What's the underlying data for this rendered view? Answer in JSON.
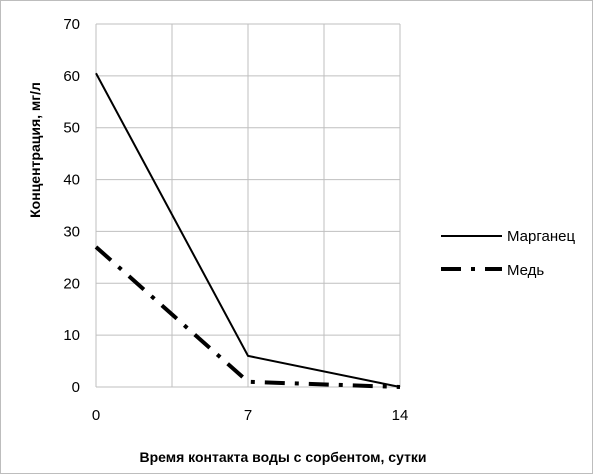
{
  "chart_data": {
    "type": "line",
    "x": [
      0,
      7,
      14
    ],
    "xlim": [
      0,
      14
    ],
    "ylim": [
      0,
      70
    ],
    "x_ticks": [
      "0",
      "7",
      "14"
    ],
    "y_ticks": [
      "0",
      "10",
      "20",
      "30",
      "40",
      "50",
      "60",
      "70"
    ],
    "xlabel": "Время контакта воды с сорбентом, сутки",
    "ylabel": "Концентрация, мг/л",
    "grid": true,
    "legend_position": "right",
    "series": [
      {
        "name": "Марганец",
        "values": [
          60.5,
          6,
          0
        ],
        "style": "solid",
        "color": "#000000"
      },
      {
        "name": "Медь",
        "values": [
          27,
          1,
          0
        ],
        "style": "long-dash-dot",
        "color": "#000000"
      }
    ]
  }
}
